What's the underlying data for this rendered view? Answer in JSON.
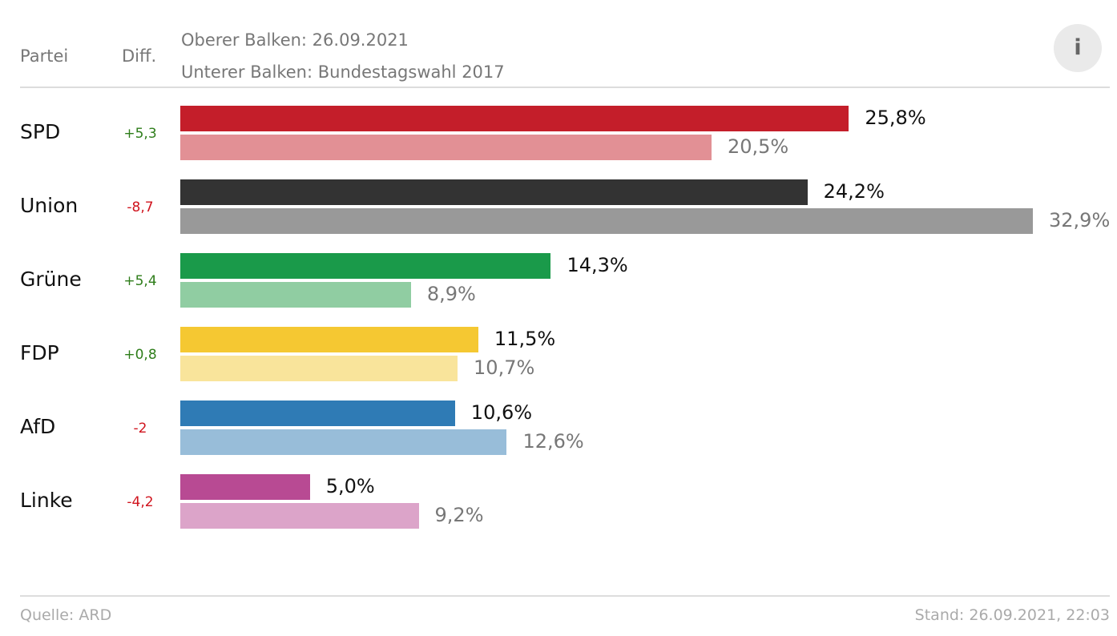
{
  "header": {
    "party_col": "Partei",
    "diff_col": "Diff.",
    "legend_upper": "Oberer Balken: 26.09.2021",
    "legend_lower": "Unterer Balken: Bundestagswahl 2017",
    "info_label": "i"
  },
  "chart_data": {
    "type": "bar",
    "orientation": "horizontal",
    "categories": [
      "SPD",
      "Union",
      "Grüne",
      "FDP",
      "AfD",
      "Linke"
    ],
    "series": [
      {
        "name": "26.09.2021",
        "values": [
          25.8,
          24.2,
          14.3,
          11.5,
          10.6,
          5.0
        ],
        "labels": [
          "25,8%",
          "24,2%",
          "14,3%",
          "11,5%",
          "10,6%",
          "5,0%"
        ]
      },
      {
        "name": "Bundestagswahl 2017",
        "values": [
          20.5,
          32.9,
          8.9,
          10.7,
          12.6,
          9.2
        ],
        "labels": [
          "20,5%",
          "32,9%",
          "8,9%",
          "10,7%",
          "12,6%",
          "9,2%"
        ]
      }
    ],
    "diff": [
      "+5,3",
      "-8,7",
      "+5,4",
      "+0,8",
      "-2",
      "-4,2"
    ],
    "colors_current": [
      "#c41e2a",
      "#333333",
      "#1a9a4a",
      "#f5c832",
      "#2f7bb5",
      "#b84a93"
    ],
    "colors_previous": [
      "#e29095",
      "#999999",
      "#90cda2",
      "#f9e49b",
      "#98bdd9",
      "#dca4c9"
    ],
    "diff_colors": {
      "positive": "#2e7d1a",
      "negative": "#d0141e"
    },
    "xlim": [
      0,
      32.9
    ]
  },
  "footer": {
    "source": "Quelle: ARD",
    "stand": "Stand: 26.09.2021, 22:03"
  }
}
